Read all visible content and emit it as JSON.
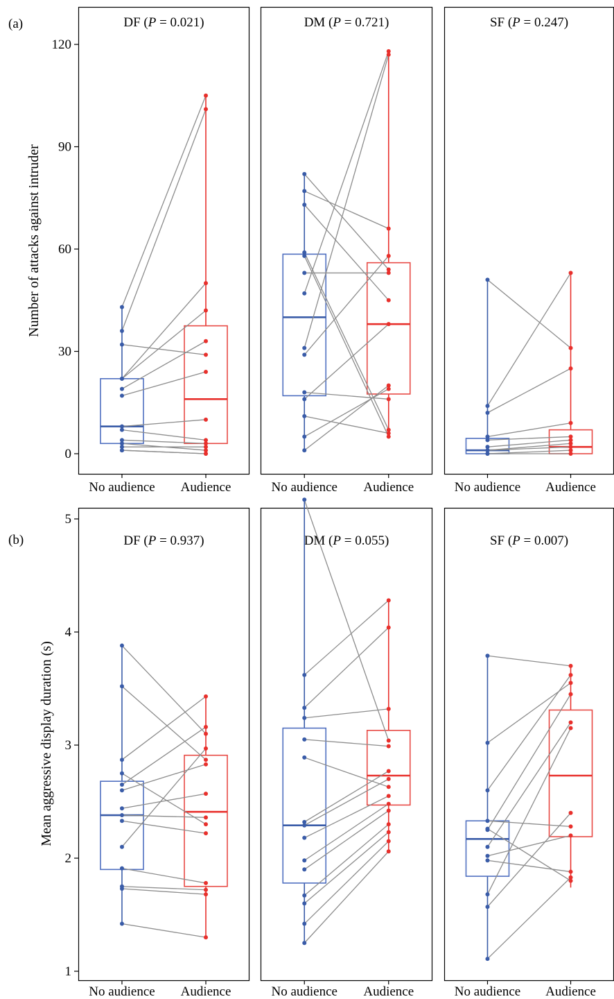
{
  "figure": {
    "colors": {
      "no_audience": "#3a5ca8",
      "no_audience_box": "#4f6fc0",
      "audience": "#e8302c",
      "audience_box": "#e84a45",
      "connector": "#8c8c8c",
      "frame": "#000000"
    }
  },
  "chart_data": [
    {
      "type": "box",
      "row_label": "(a)",
      "ylabel": "Number of attacks against intruder",
      "ylim": [
        -4,
        131
      ],
      "yticks": [
        0,
        30,
        60,
        90,
        120
      ],
      "categories": [
        "No audience",
        "Audience"
      ],
      "series": [
        {
          "name": "No audience"
        },
        {
          "name": "Audience"
        }
      ],
      "panels": [
        {
          "title_prefix": "DF (",
          "title_p": "P",
          "title_suffix": " = 0.021)",
          "box": {
            "No audience": {
              "q1": 3,
              "median": 8,
              "q3": 22,
              "min": 1,
              "max": 43
            },
            "Audience": {
              "q1": 3,
              "median": 16,
              "q3": 37.5,
              "min": 0,
              "max": 105
            }
          },
          "pairs": [
            [
              43,
              105
            ],
            [
              36,
              101
            ],
            [
              32,
              29
            ],
            [
              22,
              50
            ],
            [
              22,
              42
            ],
            [
              19,
              33
            ],
            [
              17,
              24
            ],
            [
              8,
              10
            ],
            [
              7,
              4
            ],
            [
              4,
              3
            ],
            [
              3,
              1
            ],
            [
              2,
              2
            ],
            [
              1,
              0
            ],
            [
              1,
              0
            ]
          ]
        },
        {
          "title_prefix": "DM (",
          "title_p": "P",
          "title_suffix": " = 0.721)",
          "box": {
            "No audience": {
              "q1": 17,
              "median": 40,
              "q3": 58.5,
              "min": 1,
              "max": 82
            },
            "Audience": {
              "q1": 17.5,
              "median": 38,
              "q3": 56,
              "min": 5,
              "max": 118
            }
          },
          "pairs": [
            [
              82,
              54
            ],
            [
              77,
              66
            ],
            [
              73,
              45
            ],
            [
              59,
              7
            ],
            [
              58,
              5
            ],
            [
              53,
              53
            ],
            [
              47,
              118
            ],
            [
              31,
              117
            ],
            [
              29,
              58
            ],
            [
              18,
              16
            ],
            [
              16,
              38
            ],
            [
              11,
              6
            ],
            [
              5,
              19
            ],
            [
              1,
              20
            ]
          ]
        },
        {
          "title_prefix": "SF (",
          "title_p": "P",
          "title_suffix": " = 0.247)",
          "box": {
            "No audience": {
              "q1": 0,
              "median": 1,
              "q3": 4.5,
              "min": 0,
              "max": 51
            },
            "Audience": {
              "q1": 0,
              "median": 2,
              "q3": 7,
              "min": 0,
              "max": 53
            }
          },
          "pairs": [
            [
              51,
              31
            ],
            [
              14,
              53
            ],
            [
              12,
              25
            ],
            [
              5,
              9
            ],
            [
              4,
              5
            ],
            [
              2,
              4
            ],
            [
              1,
              3
            ],
            [
              1,
              2
            ],
            [
              0,
              1
            ],
            [
              0,
              0
            ]
          ]
        }
      ]
    },
    {
      "type": "box",
      "row_label": "(b)",
      "ylabel": "Mean aggressive display duration (s)",
      "ylim": [
        0.93,
        5.53
      ],
      "yticks": [
        1,
        2,
        3,
        4,
        5
      ],
      "categories": [
        "No audience",
        "Audience"
      ],
      "series": [
        {
          "name": "No audience"
        },
        {
          "name": "Audience"
        }
      ],
      "panels": [
        {
          "title_prefix": "DF (",
          "title_p": "P",
          "title_suffix": " = 0.937)",
          "box": {
            "No audience": {
              "q1": 1.9,
              "median": 2.38,
              "q3": 2.68,
              "min": 1.42,
              "max": 3.88
            },
            "Audience": {
              "q1": 1.75,
              "median": 2.41,
              "q3": 2.91,
              "min": 1.3,
              "max": 3.43
            }
          },
          "pairs": [
            [
              3.88,
              3.1
            ],
            [
              3.52,
              2.87
            ],
            [
              2.87,
              3.43
            ],
            [
              2.75,
              2.3
            ],
            [
              2.65,
              3.16
            ],
            [
              2.6,
              2.83
            ],
            [
              2.44,
              2.57
            ],
            [
              2.38,
              2.36
            ],
            [
              2.33,
              2.22
            ],
            [
              2.1,
              2.97
            ],
            [
              1.91,
              1.78
            ],
            [
              1.75,
              1.72
            ],
            [
              1.73,
              1.68
            ],
            [
              1.42,
              1.3
            ]
          ]
        },
        {
          "title_prefix": "DM (",
          "title_p": "P",
          "title_suffix": " = 0.055)",
          "box": {
            "No audience": {
              "q1": 1.78,
              "median": 2.29,
              "q3": 3.15,
              "min": 1.25,
              "max": 5.17
            },
            "Audience": {
              "q1": 2.47,
              "median": 2.73,
              "q3": 3.13,
              "min": 2.06,
              "max": 4.28
            }
          },
          "pairs": [
            [
              5.17,
              3.04
            ],
            [
              3.62,
              4.28
            ],
            [
              3.33,
              4.04
            ],
            [
              3.24,
              3.32
            ],
            [
              3.05,
              2.99
            ],
            [
              2.89,
              2.63
            ],
            [
              2.32,
              2.77
            ],
            [
              2.29,
              2.7
            ],
            [
              2.18,
              2.55
            ],
            [
              1.98,
              2.48
            ],
            [
              1.9,
              2.42
            ],
            [
              1.67,
              2.3
            ],
            [
              1.6,
              2.23
            ],
            [
              1.42,
              2.15
            ],
            [
              1.25,
              2.06
            ]
          ]
        },
        {
          "title_prefix": "SF (",
          "title_p": "P",
          "title_suffix": " = 0.007)",
          "box": {
            "No audience": {
              "q1": 1.84,
              "median": 2.17,
              "q3": 2.33,
              "min": 1.11,
              "max": 3.79
            },
            "Audience": {
              "q1": 2.19,
              "median": 2.73,
              "q3": 3.31,
              "min": 1.74,
              "max": 3.7
            }
          },
          "pairs": [
            [
              3.79,
              3.7
            ],
            [
              3.02,
              3.55
            ],
            [
              2.6,
              3.62
            ],
            [
              2.33,
              2.28
            ],
            [
              2.26,
              1.8
            ],
            [
              2.25,
              3.45
            ],
            [
              2.1,
              3.2
            ],
            [
              2.02,
              2.2
            ],
            [
              1.98,
              1.88
            ],
            [
              1.68,
              3.15
            ],
            [
              1.57,
              2.4
            ],
            [
              1.11,
              1.83
            ]
          ]
        }
      ]
    }
  ]
}
